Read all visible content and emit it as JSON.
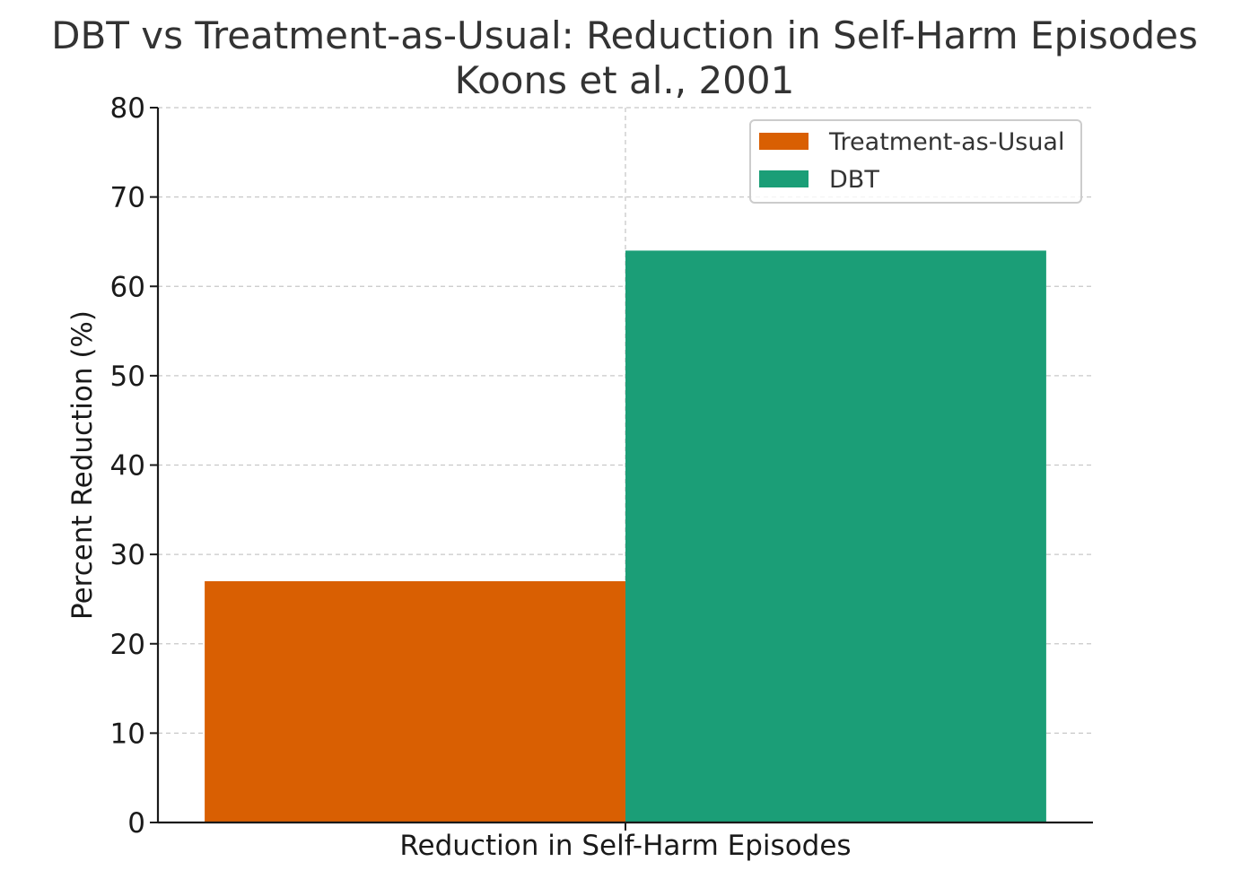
{
  "chart_data": {
    "type": "bar",
    "title": "DBT vs Treatment-as-Usual: Reduction in Self-Harm Episodes",
    "subtitle": "Koons et al., 2001",
    "categories": [
      "Reduction in Self-Harm Episodes"
    ],
    "series": [
      {
        "name": "Treatment-as-Usual",
        "values": [
          27
        ],
        "color": "#d95f02"
      },
      {
        "name": "DBT",
        "values": [
          64
        ],
        "color": "#1b9e77"
      }
    ],
    "xlabel": "",
    "ylabel": "Percent Reduction (%)",
    "ylim": [
      0,
      80
    ],
    "yticks": [
      "0",
      "10",
      "20",
      "30",
      "40",
      "50",
      "60",
      "70",
      "80"
    ],
    "grid": true,
    "legend_position": "top-right"
  }
}
